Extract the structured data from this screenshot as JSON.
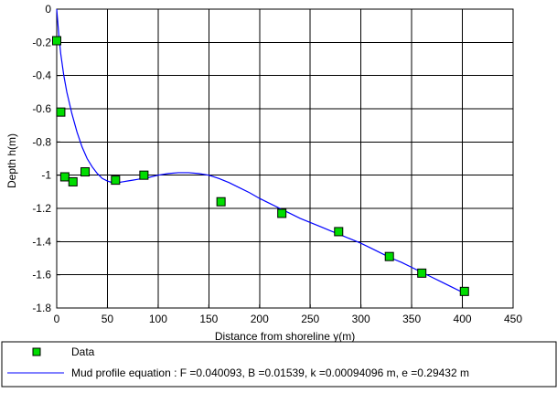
{
  "chart_data": {
    "type": "scatter",
    "title": "",
    "xlabel": "Distance from shoreline y(m)",
    "ylabel": "Depth h(m)",
    "xlim": [
      0,
      450
    ],
    "ylim": [
      -1.8,
      0
    ],
    "x_ticks": [
      0,
      50,
      100,
      150,
      200,
      250,
      300,
      350,
      400,
      450
    ],
    "y_ticks": [
      0,
      -0.2,
      -0.4,
      -0.6,
      -0.8,
      -1,
      -1.2,
      -1.4,
      -1.6,
      -1.8
    ],
    "x_tick_labels": [
      "0",
      "50",
      "100",
      "150",
      "200",
      "250",
      "300",
      "350",
      "400",
      "450"
    ],
    "y_tick_labels": [
      "0",
      "-0.2",
      "-0.4",
      "-0.6",
      "-0.8",
      "-1",
      "-1.2",
      "-1.4",
      "-1.6",
      "-1.8"
    ],
    "grid": true,
    "legend_position": "bottom",
    "colors": {
      "marker_fill": "#00dd00",
      "marker_edge": "#000000",
      "line": "#0000ff",
      "grid": "#000000",
      "axes": "#000000"
    },
    "series": [
      {
        "name": "Data",
        "type": "scatter",
        "x": [
          0,
          4,
          8,
          16,
          28,
          58,
          86,
          162,
          222,
          278,
          328,
          360,
          402
        ],
        "y": [
          -0.19,
          -0.62,
          -1.01,
          -1.04,
          -0.98,
          -1.03,
          -1.0,
          -1.16,
          -1.23,
          -1.34,
          -1.49,
          -1.59,
          -1.7
        ]
      },
      {
        "name": "Mud profile equation : F =0.040093, B =0.01539, k =0.00094096 m, e =0.29432 m",
        "type": "line",
        "x": [
          0,
          2,
          4,
          7,
          10,
          15,
          20,
          25,
          30,
          35,
          40,
          45,
          50,
          55,
          60,
          65,
          70,
          75,
          80,
          90,
          100,
          110,
          120,
          130,
          140,
          150,
          160,
          170,
          180,
          190,
          200,
          210,
          220,
          230,
          240,
          250,
          260,
          270,
          280,
          290,
          300,
          310,
          320,
          330,
          340,
          350,
          360,
          370,
          380,
          390,
          400
        ],
        "y": [
          0,
          -0.15,
          -0.27,
          -0.4,
          -0.5,
          -0.63,
          -0.74,
          -0.83,
          -0.9,
          -0.95,
          -0.99,
          -1.02,
          -1.035,
          -1.045,
          -1.045,
          -1.04,
          -1.035,
          -1.03,
          -1.025,
          -1.015,
          -1.0,
          -0.99,
          -0.985,
          -0.985,
          -0.99,
          -1.0,
          -1.02,
          -1.045,
          -1.075,
          -1.105,
          -1.14,
          -1.17,
          -1.2,
          -1.23,
          -1.26,
          -1.285,
          -1.31,
          -1.335,
          -1.36,
          -1.385,
          -1.41,
          -1.44,
          -1.47,
          -1.5,
          -1.525,
          -1.555,
          -1.585,
          -1.615,
          -1.645,
          -1.675,
          -1.705
        ]
      }
    ]
  }
}
